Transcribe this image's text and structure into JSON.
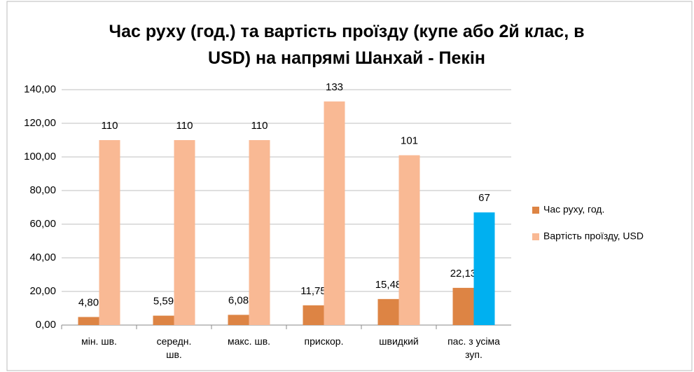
{
  "chart_data": {
    "type": "bar",
    "title": "Час руху (год.) та вартість проїзду (купе або 2й клас, в USD) на напрямі Шанхай - Пекін",
    "categories": [
      "мін. шв.",
      "середн. шв.",
      "макс. шв.",
      "прискор.",
      "швидкий",
      "пас. з усіма зуп."
    ],
    "series": [
      {
        "name": "Час руху, год.",
        "color": "#dd8444",
        "values": [
          4.8,
          5.59,
          6.08,
          11.75,
          15.48,
          22.13
        ],
        "value_labels": [
          "4,80",
          "5,59",
          "6,08",
          "11,75",
          "15,48",
          "22,13"
        ]
      },
      {
        "name": "Вартість проїзду, USD",
        "color": "#f9b994",
        "values": [
          110,
          110,
          110,
          133,
          101,
          67
        ],
        "colors": [
          "#f9b994",
          "#f9b994",
          "#f9b994",
          "#f9b994",
          "#f9b994",
          "#00b0f0"
        ]
      }
    ],
    "ylim": [
      0,
      140
    ],
    "yticks": [
      {
        "value": 0,
        "label": "0,00"
      },
      {
        "value": 20,
        "label": "20,00"
      },
      {
        "value": 40,
        "label": "40,00"
      },
      {
        "value": 60,
        "label": "60,00"
      },
      {
        "value": 80,
        "label": "80,00"
      },
      {
        "value": 100,
        "label": "100,00"
      },
      {
        "value": 120,
        "label": "120,00"
      },
      {
        "value": 140,
        "label": "140,00"
      }
    ],
    "grid": true,
    "legend": "right"
  }
}
